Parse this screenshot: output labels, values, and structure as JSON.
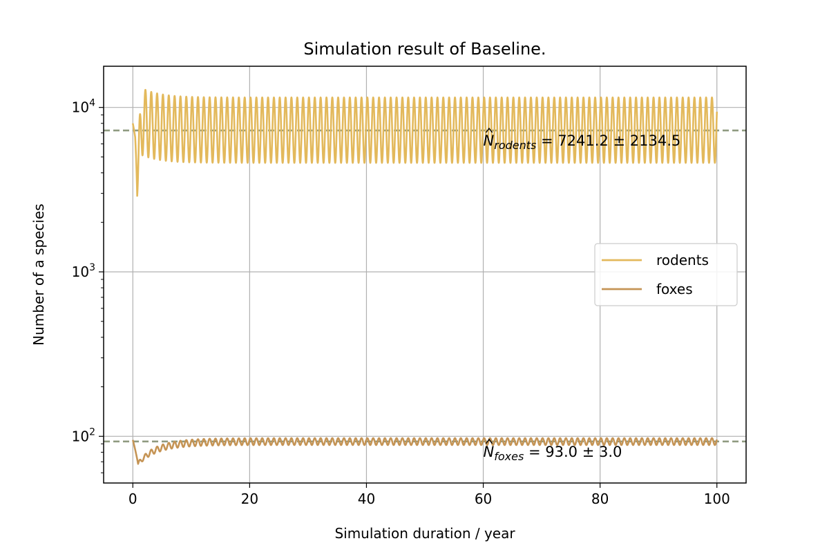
{
  "chart_data": {
    "type": "line",
    "title": "Simulation result of Baseline.",
    "xlabel": "Simulation duration / year",
    "ylabel": "Number of a species",
    "xlim": [
      -5,
      105
    ],
    "ylim": [
      52,
      17800
    ],
    "yscale": "log",
    "grid": true,
    "legend_position": "center-right",
    "x_ticks": [
      0,
      20,
      40,
      60,
      80,
      100
    ],
    "x_tick_labels": [
      "0",
      "20",
      "40",
      "60",
      "80",
      "100"
    ],
    "y_ticks": [
      100,
      1000,
      10000
    ],
    "y_tick_labels": [
      {
        "base": "10",
        "exp": "2"
      },
      {
        "base": "10",
        "exp": "3"
      },
      {
        "base": "10",
        "exp": "4"
      }
    ],
    "series": [
      {
        "name": "rodents",
        "color": "#e3b95c",
        "x_start": 0,
        "x_end": 100,
        "initial": 8000,
        "first_dip": 2900,
        "first_peak": 13500,
        "steady_min": 4600,
        "steady_max": 11500,
        "period_years": 1
      },
      {
        "name": "foxes",
        "color": "#c59455",
        "x_start": 0,
        "x_end": 100,
        "initial": 95,
        "first_dip": 68,
        "steady_min": 89,
        "steady_max": 98,
        "period_years": 1
      }
    ],
    "reference_lines": [
      {
        "y": 7241.2,
        "color": "#8f9a80",
        "style": "dashed"
      },
      {
        "y": 93.0,
        "color": "#8f9a80",
        "style": "dashed"
      }
    ],
    "annotations": [
      {
        "symbol": "N",
        "subscript": "rodents",
        "text": " = 7241.2 ± 2134.5",
        "x": 60,
        "y": 7241.2
      },
      {
        "symbol": "N",
        "subscript": "foxes",
        "text": " = 93.0 ± 3.0",
        "x": 60,
        "y": 93.0
      }
    ]
  }
}
